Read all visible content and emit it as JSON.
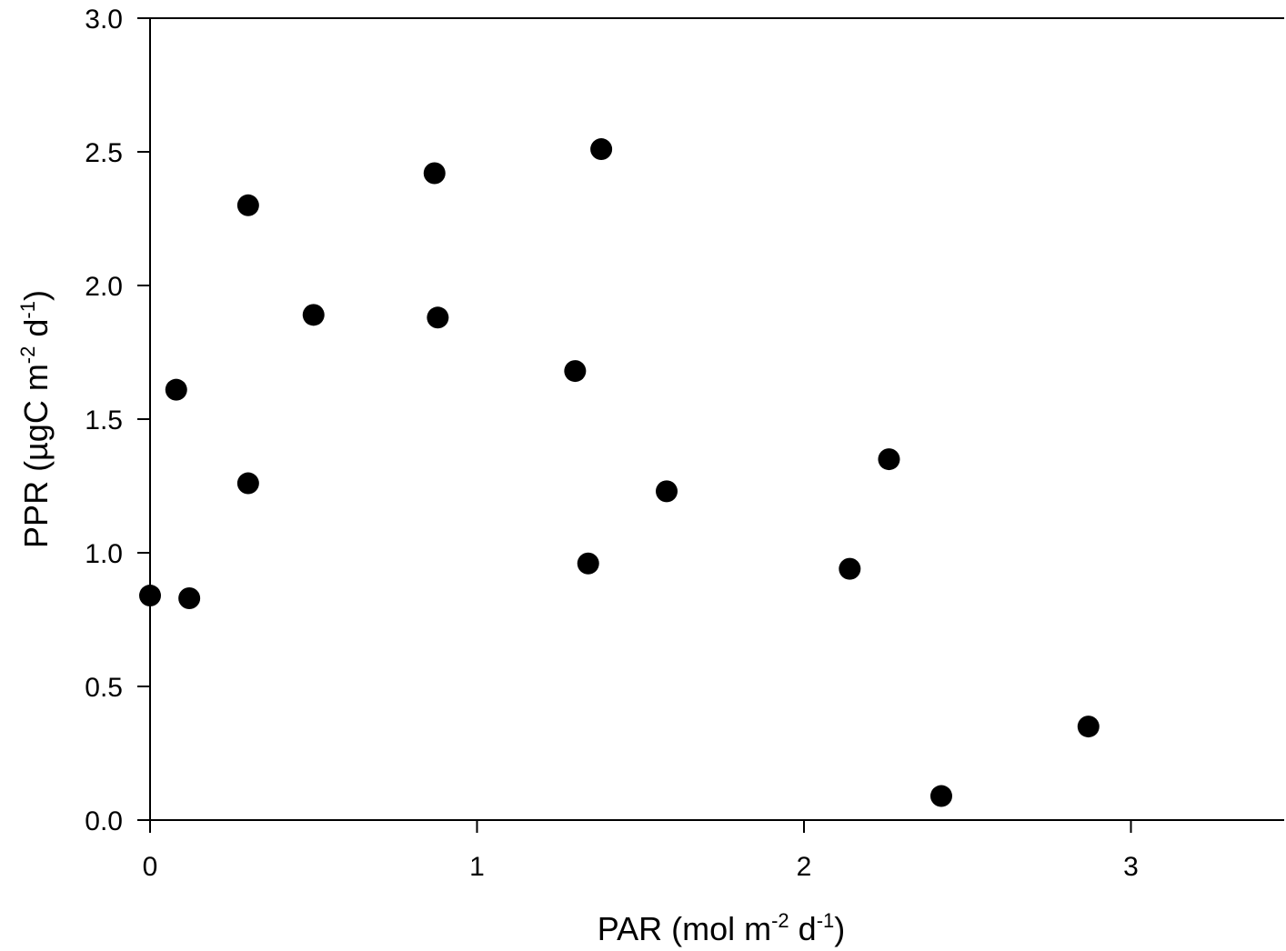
{
  "chart_data": {
    "type": "scatter",
    "title": "",
    "xlabel": {
      "parts": [
        "PAR (mol m",
        "-2",
        " d",
        "-1",
        ")"
      ]
    },
    "ylabel": {
      "parts": [
        "PPR (µgC m",
        "-2",
        " d",
        "-1",
        ")"
      ]
    },
    "xlim": [
      0,
      3.5
    ],
    "ylim": [
      0,
      3.0
    ],
    "xticks": [
      0,
      1,
      2,
      3
    ],
    "xtick_labels": [
      "0",
      "1",
      "2",
      "3"
    ],
    "yticks": [
      0,
      0.5,
      1.0,
      1.5,
      2.0,
      2.5,
      3.0
    ],
    "ytick_labels": [
      "0.0",
      "0.5",
      "1.0",
      "1.5",
      "2.0",
      "2.5",
      "3.0"
    ],
    "grid": false,
    "marker_color": "#000000",
    "series": [
      {
        "points": [
          {
            "x": 0.0,
            "y": 0.84
          },
          {
            "x": 0.08,
            "y": 1.61
          },
          {
            "x": 0.12,
            "y": 0.83
          },
          {
            "x": 0.3,
            "y": 2.3
          },
          {
            "x": 0.3,
            "y": 1.26
          },
          {
            "x": 0.5,
            "y": 1.89
          },
          {
            "x": 0.87,
            "y": 2.42
          },
          {
            "x": 0.88,
            "y": 1.88
          },
          {
            "x": 1.3,
            "y": 1.68
          },
          {
            "x": 1.34,
            "y": 0.96
          },
          {
            "x": 1.38,
            "y": 2.51
          },
          {
            "x": 1.58,
            "y": 1.23
          },
          {
            "x": 2.14,
            "y": 0.94
          },
          {
            "x": 2.26,
            "y": 1.35
          },
          {
            "x": 2.42,
            "y": 0.09
          },
          {
            "x": 2.87,
            "y": 0.35
          }
        ]
      }
    ]
  }
}
